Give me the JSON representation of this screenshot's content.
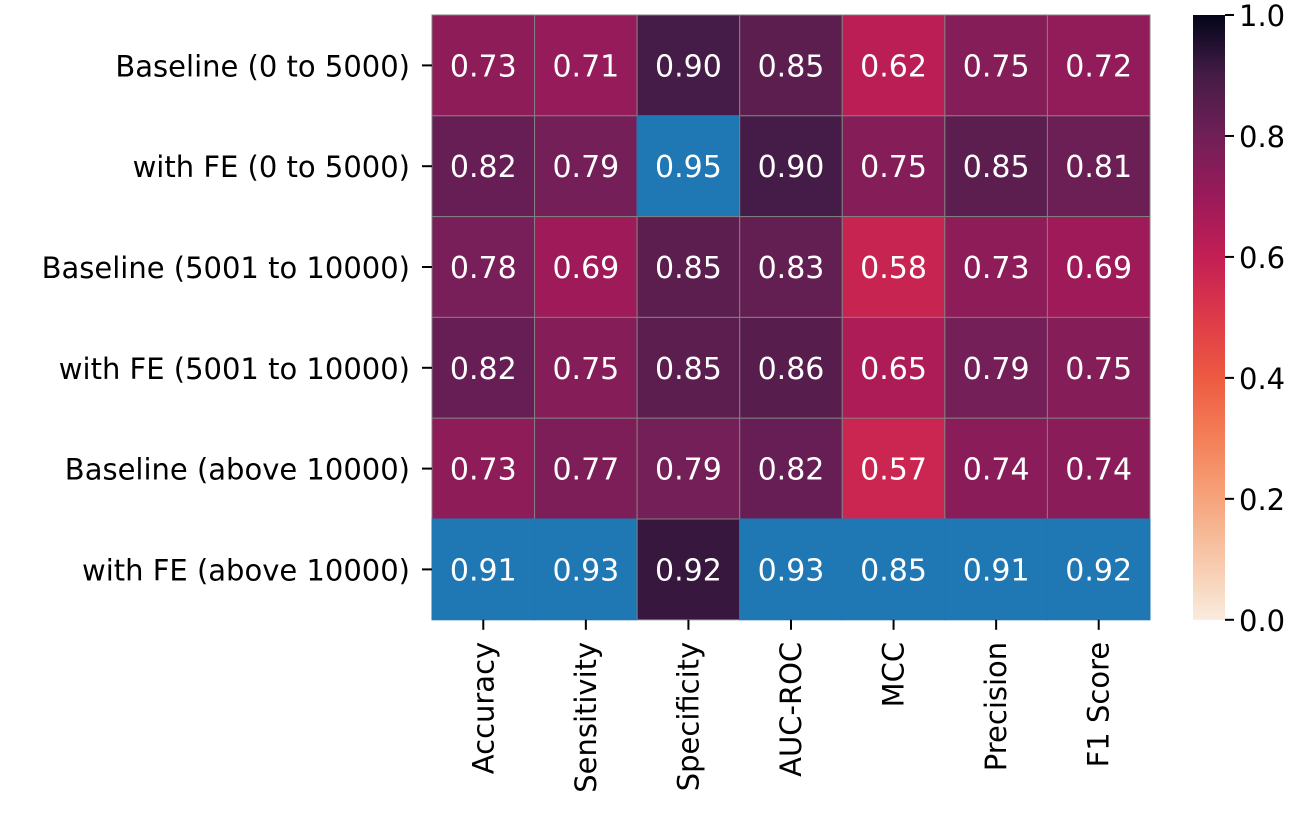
{
  "chart_data": {
    "type": "heatmap",
    "title": "",
    "xlabel": "",
    "ylabel": "",
    "rows": [
      "Baseline (0 to 5000)",
      "with FE (0 to 5000)",
      "Baseline (5001 to 10000)",
      "with FE (5001 to 10000)",
      "Baseline (above 10000)",
      "with FE (above 10000)"
    ],
    "columns": [
      "Accuracy",
      "Sensitivity",
      "Specificity",
      "AUC-ROC",
      "MCC",
      "Precision",
      "F1 Score"
    ],
    "values": [
      [
        0.73,
        0.71,
        0.9,
        0.85,
        0.62,
        0.75,
        0.72
      ],
      [
        0.82,
        0.79,
        0.95,
        0.9,
        0.75,
        0.85,
        0.81
      ],
      [
        0.78,
        0.69,
        0.85,
        0.83,
        0.58,
        0.73,
        0.69
      ],
      [
        0.82,
        0.75,
        0.85,
        0.86,
        0.65,
        0.79,
        0.75
      ],
      [
        0.73,
        0.77,
        0.79,
        0.82,
        0.57,
        0.74,
        0.74
      ],
      [
        0.91,
        0.93,
        0.92,
        0.93,
        0.85,
        0.91,
        0.92
      ]
    ],
    "highlighted_cells": [
      [
        1,
        2
      ],
      [
        5,
        0
      ],
      [
        5,
        1
      ],
      [
        5,
        3
      ],
      [
        5,
        4
      ],
      [
        5,
        5
      ],
      [
        5,
        6
      ]
    ],
    "highlight_color": "#1f77b4",
    "colormap": "rocket_r",
    "colorbar": {
      "range": [
        0.0,
        1.0
      ],
      "ticks": [
        "0.0",
        "0.2",
        "0.4",
        "0.6",
        "0.8",
        "1.0"
      ],
      "position": "right"
    },
    "grid": true,
    "cell_border_color": "#808080",
    "annotation_color": "#ffffff"
  }
}
